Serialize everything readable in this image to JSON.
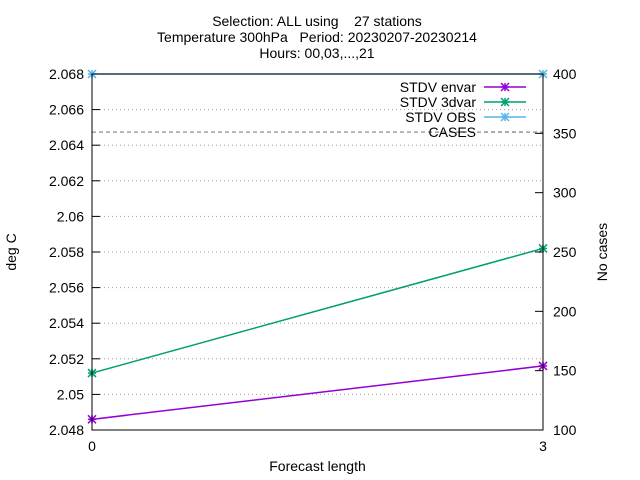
{
  "chart_data": {
    "type": "line",
    "title_lines": [
      "Selection: ALL using    27 stations",
      "Temperature 300hPa   Period: 20230207-20230214",
      "Hours: 00,03,...,21"
    ],
    "xlabel": "Forecast length",
    "ylabel": "deg C",
    "y2label": "No cases",
    "x": [
      0,
      3
    ],
    "x_ticks": [
      "0",
      "3"
    ],
    "xlim": [
      0,
      3
    ],
    "ylim": [
      2.048,
      2.068
    ],
    "y_ticks": [
      "2.048",
      "2.05",
      "2.052",
      "2.054",
      "2.056",
      "2.058",
      "2.06",
      "2.062",
      "2.064",
      "2.066",
      "2.068"
    ],
    "y2lim": [
      100,
      400
    ],
    "y2_ticks": [
      "100",
      "150",
      "200",
      "250",
      "300",
      "350",
      "400"
    ],
    "grid": true,
    "legend_position": "top-right",
    "series": [
      {
        "name": "STDV envar",
        "axis": "y1",
        "values": [
          2.0486,
          2.0516
        ],
        "color": "#9400d3",
        "marker": "x-star",
        "dash": false
      },
      {
        "name": "STDV 3dvar",
        "axis": "y1",
        "values": [
          2.0512,
          2.0582
        ],
        "color": "#009e73",
        "marker": "x-star",
        "dash": false
      },
      {
        "name": "STDV OBS",
        "axis": "y1",
        "values": [
          2.068,
          2.068
        ],
        "color": "#56b4e9",
        "marker": "x-star",
        "dash": false
      },
      {
        "name": "CASES",
        "axis": "y2",
        "values": [
          351,
          351
        ],
        "color": "#a0a0a0",
        "marker": "none",
        "dash": true
      }
    ]
  }
}
